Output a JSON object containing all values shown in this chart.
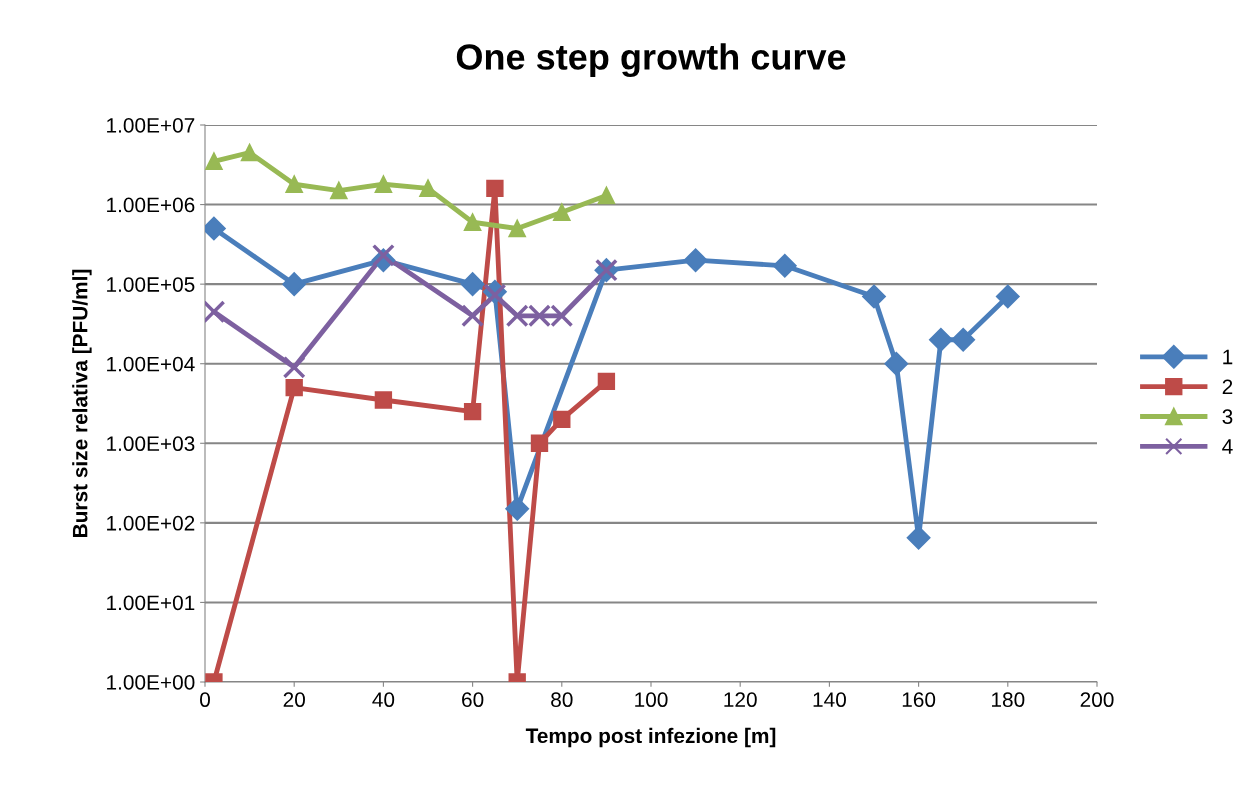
{
  "chart_data": {
    "type": "line",
    "title": "One step growth curve",
    "xlabel": "Tempo post infezione [m]",
    "ylabel": "Burst size relativa [PFU/ml]",
    "log": "y",
    "grid": "y",
    "legend": "right",
    "line_style": "solid",
    "xlim": [
      0,
      200
    ],
    "xticks": [
      0,
      20,
      40,
      60,
      80,
      100,
      120,
      140,
      160,
      180,
      200
    ],
    "ylim": [
      1,
      10000000
    ],
    "yticks": [
      {
        "value": 1,
        "label": "1.00E+00"
      },
      {
        "value": 10,
        "label": "1.00E+01"
      },
      {
        "value": 100,
        "label": "1.00E+02"
      },
      {
        "value": 1000,
        "label": "1.00E+03"
      },
      {
        "value": 10000,
        "label": "1.00E+04"
      },
      {
        "value": 100000,
        "label": "1.00E+05"
      },
      {
        "value": 1000000,
        "label": "1.00E+06"
      },
      {
        "value": 10000000,
        "label": "1.00E+07"
      }
    ],
    "series": [
      {
        "name": "1",
        "color": "#4a7ebb",
        "marker": "diamond",
        "x": [
          2,
          20,
          40,
          60,
          65,
          70,
          90,
          110,
          130,
          150,
          155,
          160,
          165,
          170,
          180
        ],
        "values": [
          500000,
          100000,
          200000,
          100000,
          80000,
          150,
          150000,
          200000,
          170000,
          70000,
          10000,
          65,
          20000,
          20000,
          70000
        ]
      },
      {
        "name": "2",
        "color": "#be4b48",
        "marker": "square",
        "x": [
          2,
          20,
          40,
          60,
          65,
          70,
          75,
          80,
          90
        ],
        "values": [
          1,
          5000,
          3500,
          2500,
          1600000,
          1,
          1000,
          2000,
          6000
        ]
      },
      {
        "name": "3",
        "color": "#98b954",
        "marker": "triangle",
        "x": [
          2,
          10,
          20,
          30,
          40,
          50,
          60,
          70,
          80,
          90
        ],
        "values": [
          3500000,
          4500000,
          1800000,
          1500000,
          1800000,
          1600000,
          600000,
          500000,
          800000,
          1300000
        ]
      },
      {
        "name": "4",
        "color": "#7d60a0",
        "marker": "cross",
        "x": [
          2,
          20,
          40,
          60,
          65,
          70,
          75,
          80,
          90
        ],
        "values": [
          45000,
          9000,
          230000,
          40000,
          73000,
          40000,
          40000,
          40000,
          150000
        ]
      }
    ]
  }
}
